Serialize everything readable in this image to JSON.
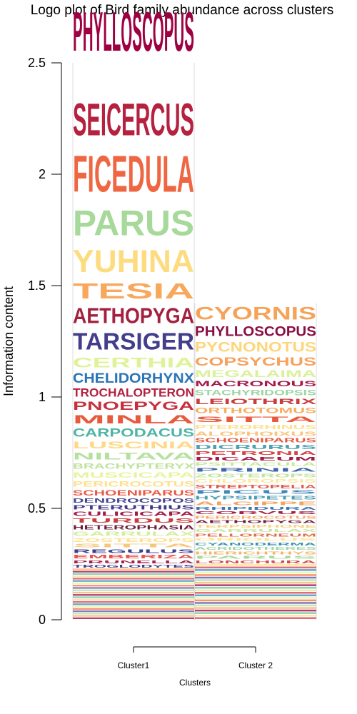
{
  "chart_data": {
    "type": "logo",
    "title": "Logo plot of Bird family abundance across clusters",
    "xlabel": "Clusters",
    "ylabel": "Information content",
    "ylim": [
      0,
      2.5
    ],
    "yticks": [
      "0",
      "0.5",
      "1",
      "1.5",
      "2",
      "2.5"
    ],
    "categories": [
      "Cluster1",
      "Cluster 2"
    ],
    "columns": [
      {
        "name": "Cluster1",
        "stack": [
          {
            "label": "PHYLLOSCOPUS",
            "color": "#9e0142",
            "from": 2.5,
            "to": 2.78
          },
          {
            "label": "SEICERCUS",
            "color": "#b5213e",
            "from": 2.13,
            "to": 2.36
          },
          {
            "label": "FICEDULA",
            "color": "#ef6642",
            "from": 1.87,
            "to": 2.13
          },
          {
            "label": "PARUS",
            "color": "#a6d99a",
            "from": 1.69,
            "to": 1.87
          },
          {
            "label": "YUHINA",
            "color": "#fddc80",
            "from": 1.53,
            "to": 1.69
          },
          {
            "label": "TESIA",
            "color": "#f8a75b",
            "from": 1.42,
            "to": 1.53
          },
          {
            "label": "AETHOPYGA",
            "color": "#a3203f",
            "from": 1.31,
            "to": 1.42
          },
          {
            "label": "TARSIGER",
            "color": "#433e8c",
            "from": 1.19,
            "to": 1.31
          },
          {
            "label": "CERTHIA",
            "color": "#dff29a",
            "from": 1.12,
            "to": 1.19
          },
          {
            "label": "CHELIDORHYNX",
            "color": "#2c75b4",
            "from": 1.05,
            "to": 1.12
          },
          {
            "label": "TROCHALOPTERON",
            "color": "#b41f3f",
            "from": 0.99,
            "to": 1.05
          },
          {
            "label": "PNOEPYGA",
            "color": "#c6303e",
            "from": 0.93,
            "to": 0.99
          },
          {
            "label": "MINLA",
            "color": "#e85a3d",
            "from": 0.87,
            "to": 0.93
          },
          {
            "label": "CARPODACUS",
            "color": "#4fb4a5",
            "from": 0.81,
            "to": 0.87
          },
          {
            "label": "LUSCINIA",
            "color": "#fed885",
            "from": 0.76,
            "to": 0.81
          },
          {
            "label": "NILTAVA",
            "color": "#b6e0a0",
            "from": 0.71,
            "to": 0.76
          },
          {
            "label": "BRACHYPTERYX",
            "color": "#bfe39e",
            "from": 0.67,
            "to": 0.71
          },
          {
            "label": "MUSCICAPA",
            "color": "#e6f59c",
            "from": 0.63,
            "to": 0.67
          },
          {
            "label": "PERICROCOTUS",
            "color": "#fee08e",
            "from": 0.59,
            "to": 0.63
          },
          {
            "label": "SCHOENIPARUS",
            "color": "#e85a45",
            "from": 0.55,
            "to": 0.59
          },
          {
            "label": "DENDROCOPOS",
            "color": "#45468f",
            "from": 0.52,
            "to": 0.55
          },
          {
            "label": "PTERUTHIUS",
            "color": "#3e3a8a",
            "from": 0.49,
            "to": 0.52
          },
          {
            "label": "CULICICAPA",
            "color": "#a31c46",
            "from": 0.46,
            "to": 0.49
          },
          {
            "label": "TURDUS",
            "color": "#c83c3b",
            "from": 0.43,
            "to": 0.46
          },
          {
            "label": "HETEROPHASIA",
            "color": "#6b1f3c",
            "from": 0.4,
            "to": 0.43
          },
          {
            "label": "GARRULAX",
            "color": "#d4ee9c",
            "from": 0.37,
            "to": 0.4
          },
          {
            "label": "ZOSTEROPS",
            "color": "#fee090",
            "from": 0.345,
            "to": 0.37
          },
          {
            "label": "SITTA",
            "color": "#f5c77a",
            "from": 0.32,
            "to": 0.345
          },
          {
            "label": "REGULUS",
            "color": "#3a3f8f",
            "from": 0.295,
            "to": 0.32
          },
          {
            "label": "EMBERIZA",
            "color": "#e6544a",
            "from": 0.27,
            "to": 0.295
          },
          {
            "label": "PRUNELLA",
            "color": "#a41f45",
            "from": 0.25,
            "to": 0.27
          },
          {
            "label": "TROGLODYTES",
            "color": "#3d3c8d",
            "from": 0.23,
            "to": 0.25
          }
        ]
      },
      {
        "name": "Cluster 2",
        "stack": [
          {
            "label": "CYORNIS",
            "color": "#f6a35a",
            "from": 1.33,
            "to": 1.42
          },
          {
            "label": "PHYLLOSCOPUS",
            "color": "#8a0e45",
            "from": 1.26,
            "to": 1.33
          },
          {
            "label": "PYCNONOTUS",
            "color": "#fdd57a",
            "from": 1.19,
            "to": 1.26
          },
          {
            "label": "COPSYCHUS",
            "color": "#f8a15d",
            "from": 1.13,
            "to": 1.19
          },
          {
            "label": "MEGALAIMA",
            "color": "#dbf09a",
            "from": 1.08,
            "to": 1.13
          },
          {
            "label": "MACRONOUS",
            "color": "#a3194a",
            "from": 1.04,
            "to": 1.08
          },
          {
            "label": "STACHYRIDOPSIS",
            "color": "#9dd5a4",
            "from": 1.0,
            "to": 1.04
          },
          {
            "label": "LEIOTHRIX",
            "color": "#c93c3e",
            "from": 0.96,
            "to": 1.0
          },
          {
            "label": "ORTHOTOMUS",
            "color": "#f8ad60",
            "from": 0.92,
            "to": 0.96
          },
          {
            "label": "SITTA",
            "color": "#e85a3d",
            "from": 0.88,
            "to": 0.92
          },
          {
            "label": "PTERORHINUS",
            "color": "#fee08e",
            "from": 0.85,
            "to": 0.88
          },
          {
            "label": "ALOPHOIXUS",
            "color": "#f9c47d",
            "from": 0.82,
            "to": 0.85
          },
          {
            "label": "SCHOENIPARUS",
            "color": "#e45a40",
            "from": 0.79,
            "to": 0.82
          },
          {
            "label": "DICRURUS",
            "color": "#4ca2b0",
            "from": 0.76,
            "to": 0.79
          },
          {
            "label": "PETRONIA",
            "color": "#d4433f",
            "from": 0.735,
            "to": 0.76
          },
          {
            "label": "DICAEUM",
            "color": "#a51b48",
            "from": 0.71,
            "to": 0.735
          },
          {
            "label": "PSITTACULA",
            "color": "#c8e99c",
            "from": 0.685,
            "to": 0.71
          },
          {
            "label": "PRINIA",
            "color": "#3e65a9",
            "from": 0.66,
            "to": 0.685
          },
          {
            "label": "ZOSTEROPS",
            "color": "#bfe4a0",
            "from": 0.635,
            "to": 0.66
          },
          {
            "label": "CHLOROPSIS",
            "color": "#fee79a",
            "from": 0.61,
            "to": 0.635
          },
          {
            "label": "STREPTOPELIA",
            "color": "#e2584a",
            "from": 0.585,
            "to": 0.61
          },
          {
            "label": "PICUS",
            "color": "#3f87bc",
            "from": 0.56,
            "to": 0.585
          },
          {
            "label": "HYPSIPETES",
            "color": "#4b9cb3",
            "from": 0.535,
            "to": 0.56
          },
          {
            "label": "ALCIPPE",
            "color": "#f3a35f",
            "from": 0.51,
            "to": 0.535
          },
          {
            "label": "RHIPIDURA",
            "color": "#3d78b5",
            "from": 0.49,
            "to": 0.51
          },
          {
            "label": "CORVUS",
            "color": "#a0204a",
            "from": 0.47,
            "to": 0.49
          },
          {
            "label": "PERICROCOTUS",
            "color": "#f9a65f",
            "from": 0.45,
            "to": 0.47
          },
          {
            "label": "AETHOPYGA",
            "color": "#6a1b40",
            "from": 0.43,
            "to": 0.45
          },
          {
            "label": "TERPSIPHONE",
            "color": "#fad07f",
            "from": 0.41,
            "to": 0.43
          },
          {
            "label": "GARRULAX",
            "color": "#c7e69f",
            "from": 0.39,
            "to": 0.41
          },
          {
            "label": "PELLORNEUM",
            "color": "#e36b4b",
            "from": 0.37,
            "to": 0.39
          },
          {
            "label": "ORIOLUS",
            "color": "#fee38c",
            "from": 0.35,
            "to": 0.37
          },
          {
            "label": "CYANODERMA",
            "color": "#3a8fb8",
            "from": 0.33,
            "to": 0.35
          },
          {
            "label": "ACRIDOTHERES",
            "color": "#9fd6a3",
            "from": 0.31,
            "to": 0.33
          },
          {
            "label": "HIERICHTHYS",
            "color": "#f6b26a",
            "from": 0.29,
            "to": 0.31
          },
          {
            "label": "PARUS",
            "color": "#a6d99a",
            "from": 0.27,
            "to": 0.29
          },
          {
            "label": "LONCHURA",
            "color": "#d54a44",
            "from": 0.25,
            "to": 0.27
          }
        ]
      }
    ]
  }
}
